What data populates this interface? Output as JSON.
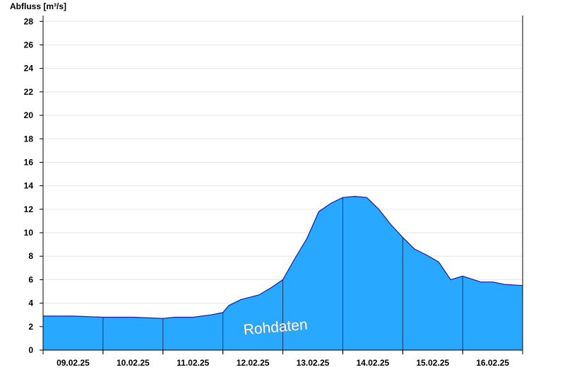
{
  "chart_data": {
    "type": "area",
    "ylabel": "Abfluss [m³/s]",
    "ylim": [
      0,
      28.5
    ],
    "yticks": [
      0,
      2,
      4,
      6,
      8,
      10,
      12,
      14,
      16,
      18,
      20,
      22,
      24,
      26,
      28
    ],
    "x_days": [
      "09.02.25",
      "10.02.25",
      "11.02.25",
      "12.02.25",
      "13.02.25",
      "14.02.25",
      "15.02.25",
      "16.02.25"
    ],
    "grid": true,
    "fill_color": "#29a8ff",
    "line_color": "#1a1aa0",
    "annotation": "Rohdaten",
    "series": [
      {
        "x": [
          0,
          0.5,
          1.0,
          1.5,
          2.0,
          2.2,
          2.5,
          2.8,
          3.0,
          3.1,
          3.3,
          3.6,
          3.8,
          4.0,
          4.2,
          4.4,
          4.6,
          4.8,
          5.0,
          5.2,
          5.4,
          5.6,
          5.8,
          6.0,
          6.2,
          6.4,
          6.6,
          6.8,
          7.0,
          7.3,
          7.5,
          7.7,
          8.0
        ],
        "y": [
          2.9,
          2.9,
          2.8,
          2.8,
          2.7,
          2.8,
          2.8,
          3.0,
          3.2,
          3.8,
          4.3,
          4.7,
          5.3,
          6.0,
          7.8,
          9.5,
          11.8,
          12.5,
          13.0,
          13.1,
          13.0,
          12.0,
          10.7,
          9.6,
          8.6,
          8.1,
          7.5,
          6.0,
          6.3,
          5.8,
          5.8,
          5.6,
          5.5
        ]
      }
    ]
  }
}
